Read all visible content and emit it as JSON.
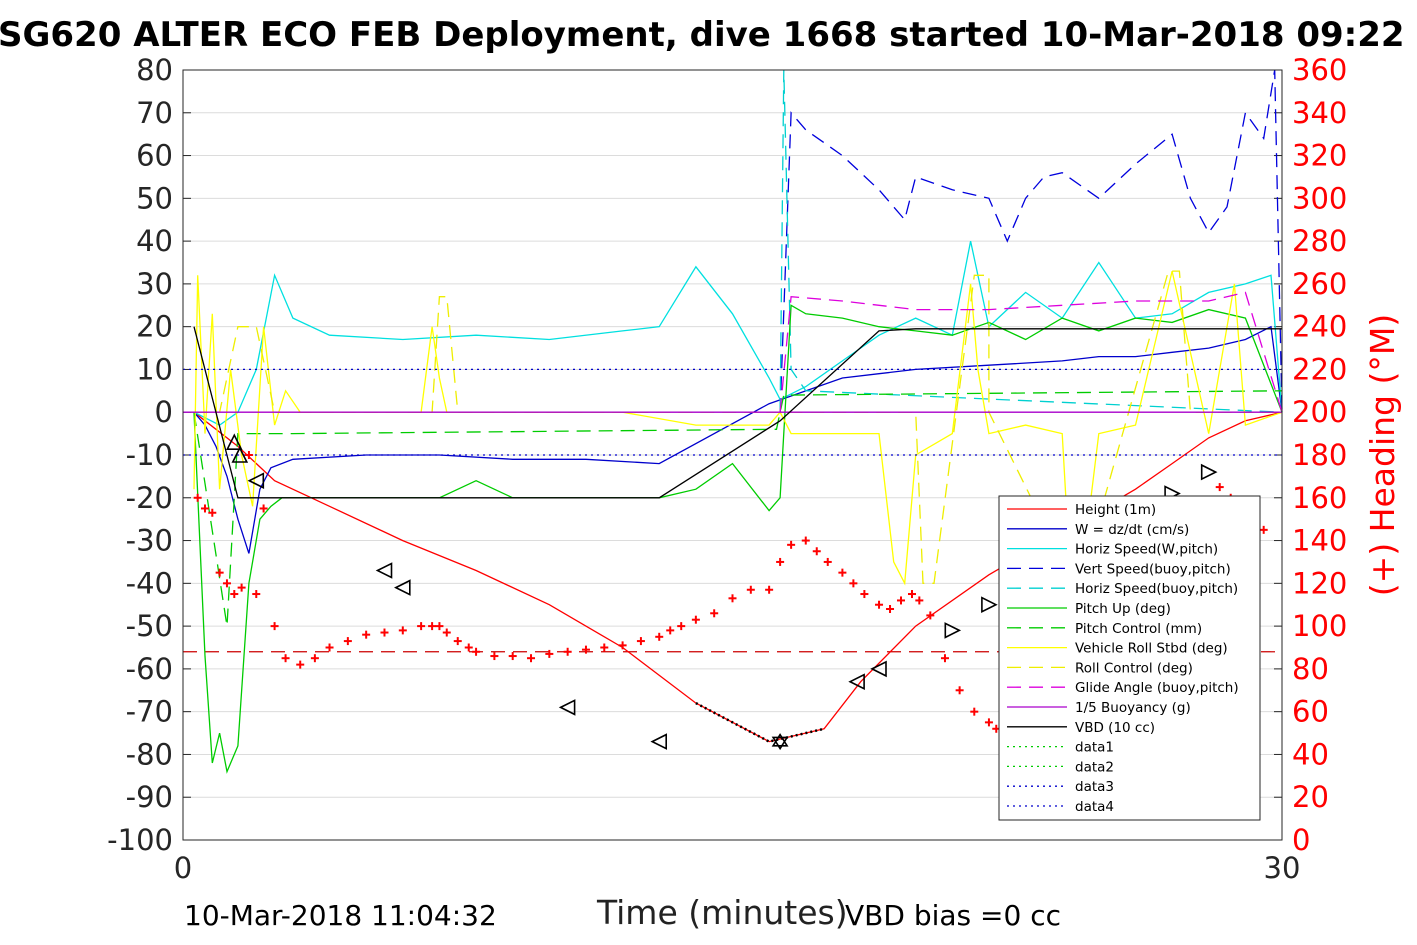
{
  "chart_data": {
    "type": "line",
    "title": "SG620 ALTER ECO FEB Deployment, dive 1668 started 10-Mar-2018 09:22",
    "xlabel": "Time (minutes)",
    "ylabel": "",
    "y2label": "(+) Heading (°M)",
    "xlim": [
      0,
      30
    ],
    "ylim": [
      -100,
      80
    ],
    "y2lim": [
      0,
      360
    ],
    "xticks": [
      "0",
      "30"
    ],
    "yticks": [
      "80",
      "70",
      "60",
      "50",
      "40",
      "30",
      "20",
      "10",
      "0",
      "-10",
      "-20",
      "-30",
      "-40",
      "-50",
      "-60",
      "-70",
      "-80",
      "-90",
      "-100"
    ],
    "y2ticks": [
      "360",
      "340",
      "320",
      "300",
      "280",
      "260",
      "240",
      "220",
      "200",
      "180",
      "160",
      "140",
      "120",
      "100",
      "80",
      "60",
      "40",
      "20",
      "0"
    ],
    "grid": true,
    "legend_position": "lower-right",
    "series": [
      {
        "name": "Height (1m)",
        "color": "#ff0000",
        "style": "solid",
        "x": [
          0.3,
          1.5,
          2.5,
          4,
          6,
          8,
          10,
          12,
          14,
          16,
          17.5,
          18.5,
          20,
          22,
          24,
          26,
          27,
          28,
          29,
          30
        ],
        "y": [
          0,
          -8,
          -16,
          -22,
          -30,
          -37,
          -45,
          -55,
          -68,
          -77,
          -74,
          -63,
          -50,
          -38,
          -28,
          -18,
          -12,
          -6,
          -2,
          0
        ]
      },
      {
        "name": "W = dz/dt (cm/s)",
        "color": "#0000cc",
        "style": "solid",
        "x": [
          0.3,
          0.6,
          0.9,
          1.2,
          1.5,
          1.8,
          2.1,
          2.4,
          3,
          5,
          7,
          9,
          11,
          13,
          16,
          18,
          19,
          20,
          22,
          24,
          25,
          26,
          27,
          28,
          29,
          29.7,
          30
        ],
        "y": [
          0,
          -3,
          -8,
          -15,
          -25,
          -33,
          -18,
          -13,
          -11,
          -10,
          -10,
          -11,
          -11,
          -12,
          2,
          8,
          9,
          10,
          11,
          12,
          13,
          13,
          14,
          15,
          17,
          20,
          0
        ]
      },
      {
        "name": "Horiz Speed(W,pitch)",
        "color": "#00e0e0",
        "style": "solid",
        "x": [
          0.3,
          1,
          1.5,
          2,
          2.5,
          3,
          4,
          6,
          8,
          10,
          12,
          13,
          14,
          15,
          16,
          16.3,
          17,
          18,
          19,
          20,
          21,
          21.5,
          22,
          23,
          24,
          25,
          26,
          27,
          28,
          29,
          29.7,
          30
        ],
        "y": [
          0,
          -3,
          0,
          10,
          32,
          22,
          18,
          17,
          18,
          17,
          19,
          20,
          34,
          23,
          8,
          3,
          6,
          12,
          18,
          22,
          18,
          40,
          20,
          28,
          22,
          35,
          22,
          23,
          28,
          30,
          32,
          0
        ]
      },
      {
        "name": "Vert Speed(buoy,pitch)",
        "color": "#0000dd",
        "style": "dash",
        "x": [
          16.3,
          16.6,
          17,
          18,
          19,
          19.7,
          20,
          21,
          22,
          22.5,
          23,
          23.5,
          24,
          25,
          26,
          27,
          27.5,
          28,
          28.5,
          29,
          29.5,
          29.8,
          30
        ],
        "y": [
          0,
          70,
          66,
          60,
          52,
          45,
          55,
          52,
          50,
          40,
          50,
          55,
          56,
          50,
          58,
          65,
          50,
          42,
          48,
          70,
          64,
          80,
          0
        ]
      },
      {
        "name": "Horiz Speed(buoy,pitch)",
        "color": "#00d0d0",
        "style": "dash",
        "x": [
          16.3,
          16.4,
          16.6,
          17,
          30
        ],
        "y": [
          0,
          80,
          10,
          5,
          0
        ]
      },
      {
        "name": "Pitch Up (deg)",
        "color": "#00cc00",
        "style": "solid",
        "x": [
          0.3,
          0.6,
          0.8,
          1.0,
          1.2,
          1.5,
          1.8,
          2.1,
          2.4,
          2.7,
          3,
          5,
          7,
          8,
          9,
          11,
          13,
          14,
          15,
          16,
          16.3,
          16.6,
          17,
          18,
          19,
          20,
          21,
          22,
          23,
          24,
          25,
          26,
          27,
          28,
          29,
          30
        ],
        "y": [
          0,
          -57,
          -82,
          -75,
          -84,
          -78,
          -40,
          -25,
          -22,
          -20,
          -20,
          -20,
          -20,
          -16,
          -20,
          -20,
          -20,
          -18,
          -12,
          -23,
          -20,
          25,
          23,
          22,
          20,
          19,
          18,
          21,
          17,
          22,
          19,
          22,
          21,
          24,
          22,
          0
        ]
      },
      {
        "name": "Pitch Control (mm)",
        "color": "#00cc00",
        "style": "dash",
        "x": [
          0.3,
          1.2,
          1.5,
          3,
          16.2,
          16.4,
          30
        ],
        "y": [
          0,
          -50,
          -5,
          -5,
          -4,
          4,
          5
        ]
      },
      {
        "name": "Vehicle Roll Stbd (deg)",
        "color": "#ffff00",
        "style": "solid",
        "x": [
          0.3,
          0.4,
          0.6,
          0.8,
          1,
          1.3,
          1.6,
          1.9,
          2.2,
          2.5,
          2.8,
          3.2,
          5,
          6.5,
          6.8,
          7,
          7.2,
          7.6,
          8,
          10,
          12,
          14,
          16,
          16.3,
          16.6,
          18,
          19,
          19.4,
          19.7,
          20,
          21,
          21.5,
          21.7,
          22,
          23,
          24,
          24.2,
          24.5,
          25,
          26,
          26.5,
          27,
          28,
          28.7,
          29,
          30
        ],
        "y": [
          -18,
          32,
          -5,
          23,
          -18,
          10,
          -10,
          -22,
          20,
          -3,
          5,
          0,
          0,
          0,
          20,
          8,
          0,
          0,
          0,
          0,
          0,
          -3,
          -3,
          0,
          -5,
          -5,
          -5,
          -35,
          -40,
          -10,
          -5,
          30,
          10,
          -5,
          -3,
          -5,
          -35,
          -40,
          -5,
          -3,
          15,
          33,
          -5,
          30,
          -3,
          0
        ]
      },
      {
        "name": "Roll Control (deg)",
        "color": "#eeee00",
        "style": "dash",
        "x": [
          0.3,
          1,
          1.5,
          2,
          2.5,
          2.8,
          3,
          6.8,
          7,
          7.2,
          7.5,
          16.3,
          20,
          20.2,
          20.5,
          21.6,
          22,
          22,
          24.3,
          24.5,
          26.9,
          27.2,
          27.5,
          30
        ],
        "y": [
          0,
          0,
          20,
          20,
          0,
          0,
          0,
          0,
          27,
          27,
          0,
          0,
          0,
          -40,
          -40,
          32,
          32,
          0,
          -40,
          -40,
          33,
          33,
          0,
          0
        ]
      },
      {
        "name": "Glide Angle (buoy,pitch)",
        "color": "#dd00dd",
        "style": "dash",
        "x": [
          16.3,
          16.6,
          18,
          20,
          22,
          24,
          26,
          28,
          29,
          30
        ],
        "y": [
          0,
          27,
          26,
          24,
          24,
          25,
          26,
          26,
          28,
          0
        ]
      },
      {
        "name": "1/5 Buoyancy (g)",
        "color": "#aa00cc",
        "style": "solid",
        "x": [
          0,
          30
        ],
        "y": [
          0,
          0
        ]
      },
      {
        "name": "VBD (10 cc)",
        "color": "#000000",
        "style": "solid",
        "x": [
          0.3,
          1.5,
          13,
          16.3,
          19,
          20,
          30
        ],
        "y": [
          20,
          -20,
          -20,
          -2,
          19,
          19.5,
          19.5
        ]
      },
      {
        "name": "data1",
        "color": "#00cc00",
        "style": "dot",
        "x": [],
        "y": []
      },
      {
        "name": "data2",
        "color": "#00cc00",
        "style": "dot",
        "x": [],
        "y": []
      },
      {
        "name": "data3",
        "color": "#0000cc",
        "style": "dot",
        "x": [
          0,
          30
        ],
        "y": [
          -10,
          -10
        ]
      },
      {
        "name": "data4",
        "color": "#0000cc",
        "style": "dot",
        "x": [
          0,
          30
        ],
        "y": [
          10,
          10
        ]
      }
    ],
    "reference_lines": [
      {
        "axis": "y2",
        "value": 88,
        "color": "#cc0000",
        "style": "dash"
      }
    ],
    "heading_points_y2": {
      "color": "#ff0000",
      "x": [
        0.4,
        0.6,
        0.8,
        1.0,
        1.2,
        1.4,
        1.6,
        1.8,
        2.0,
        2.2,
        2.5,
        2.8,
        3.2,
        3.6,
        4,
        4.5,
        5,
        5.5,
        6,
        6.5,
        6.8,
        7,
        7.2,
        7.5,
        7.8,
        8,
        8.5,
        9,
        9.5,
        10,
        10.5,
        11,
        11.5,
        12,
        12.5,
        13,
        13.3,
        13.6,
        14,
        14.5,
        15,
        15.5,
        16,
        16.3,
        16.6,
        17,
        17.3,
        17.6,
        18,
        18.3,
        18.6,
        19,
        19.3,
        19.6,
        19.9,
        20.1,
        20.4,
        20.8,
        21.2,
        21.6,
        22,
        22.2,
        22.5,
        23,
        23.5,
        24,
        24.3,
        24.6,
        24.9,
        25.1,
        25.3,
        25.6,
        26,
        26.4,
        26.8,
        27.1,
        27.4,
        27.7,
        28,
        28.3,
        28.6,
        28.9,
        29.2,
        29.5
      ],
      "y": [
        160,
        155,
        153,
        125,
        120,
        115,
        118,
        180,
        115,
        155,
        100,
        85,
        82,
        85,
        90,
        93,
        96,
        97,
        98,
        100,
        100,
        100,
        97,
        93,
        90,
        88,
        86,
        86,
        85,
        87,
        88,
        89,
        90,
        91,
        93,
        95,
        98,
        100,
        103,
        106,
        113,
        117,
        117,
        130,
        138,
        140,
        135,
        130,
        125,
        120,
        115,
        110,
        108,
        112,
        115,
        112,
        105,
        85,
        70,
        60,
        55,
        52,
        47,
        45,
        43,
        40,
        57,
        63,
        67,
        73,
        80,
        90,
        98,
        108,
        118,
        138,
        147,
        152,
        150,
        165,
        160,
        157,
        150,
        145
      ]
    },
    "vbd_markers": [
      {
        "x": 1.4,
        "y": -7,
        "dir": "up"
      },
      {
        "x": 1.55,
        "y": -10,
        "dir": "up"
      },
      {
        "x": 2.0,
        "y": -16,
        "dir": "left"
      },
      {
        "x": 5.5,
        "y": -37,
        "dir": "left"
      },
      {
        "x": 6.0,
        "y": -41,
        "dir": "left"
      },
      {
        "x": 10.5,
        "y": -69,
        "dir": "left"
      },
      {
        "x": 13.0,
        "y": -77,
        "dir": "left"
      },
      {
        "x": 16.3,
        "y": -77,
        "dir": "star"
      },
      {
        "x": 18.4,
        "y": -63,
        "dir": "left"
      },
      {
        "x": 19.0,
        "y": -60,
        "dir": "left"
      },
      {
        "x": 21.0,
        "y": -51,
        "dir": "right"
      },
      {
        "x": 22.0,
        "y": -45,
        "dir": "right"
      },
      {
        "x": 24.5,
        "y": -35,
        "dir": "right"
      },
      {
        "x": 25.5,
        "y": -30,
        "dir": "right"
      },
      {
        "x": 27.0,
        "y": -19,
        "dir": "right"
      },
      {
        "x": 28.0,
        "y": -14,
        "dir": "right"
      }
    ],
    "surface_segment": {
      "color": "#000000",
      "style": "dot",
      "x_from": 13.0,
      "x_to": 18.4
    }
  },
  "footer": {
    "left": "10-Mar-2018 11:04:32",
    "right": "VBD bias =0 cc"
  }
}
